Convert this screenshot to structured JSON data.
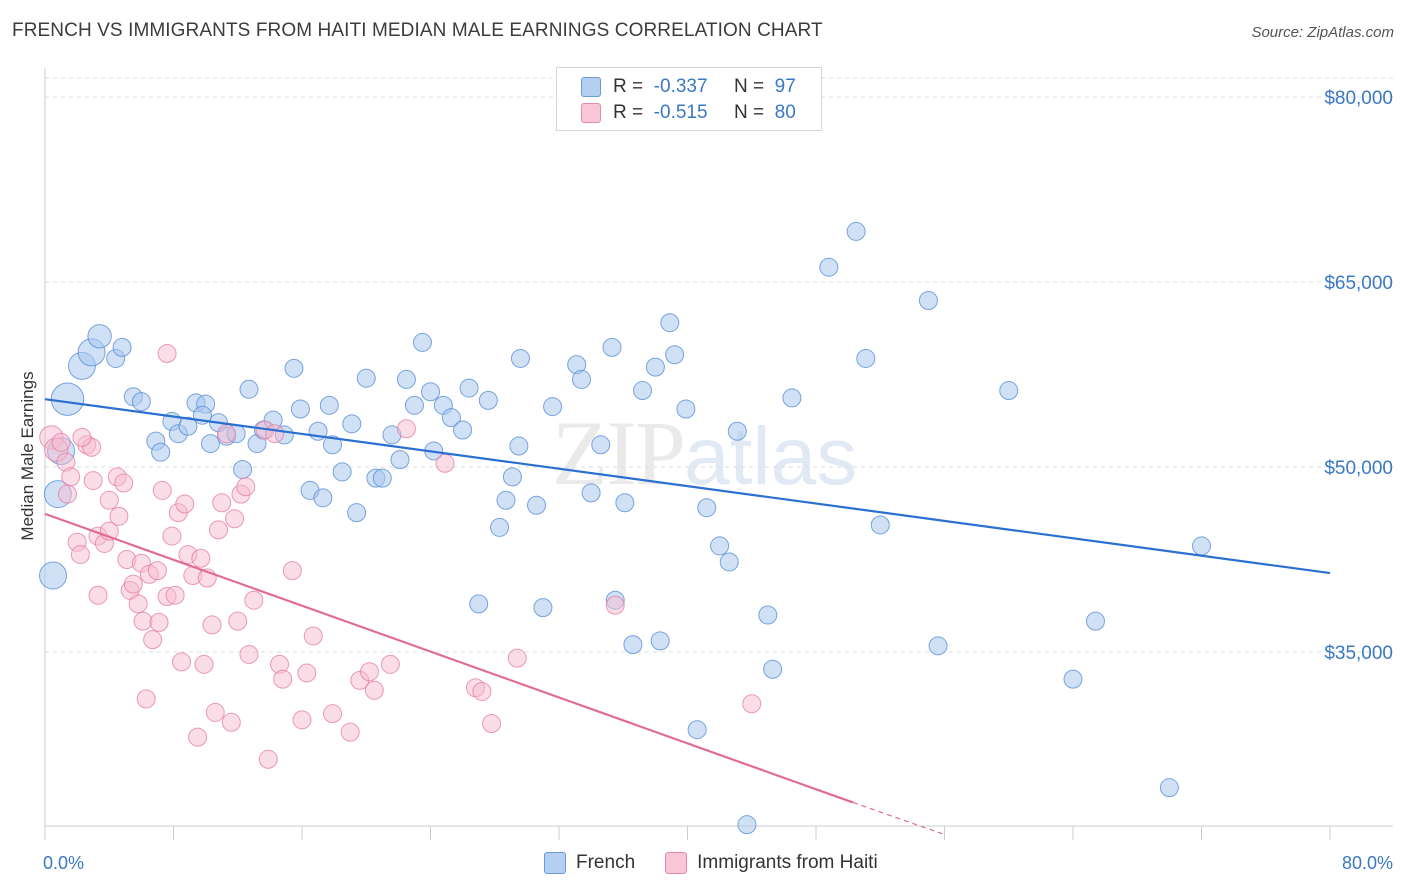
{
  "title": "FRENCH VS IMMIGRANTS FROM HAITI MEDIAN MALE EARNINGS CORRELATION CHART",
  "source": "Source: ZipAtlas.com",
  "watermark": {
    "zip": "ZIP",
    "atlas": "atlas"
  },
  "legend": {
    "rows": [
      {
        "r_label": "R =",
        "r_value": "-0.337",
        "n_label": "N =",
        "n_value": "97"
      },
      {
        "r_label": "R =",
        "r_value": "-0.515",
        "n_label": "N =",
        "n_value": "80"
      }
    ]
  },
  "colors": {
    "french_fill": "#a9c8ee",
    "french_stroke": "#5b8fd4",
    "french_line": "#2a6fd1",
    "haiti_fill": "#f5bcd0",
    "haiti_stroke": "#e47aa0",
    "haiti_line": "#e06b96",
    "grid": "#d8dde3",
    "axis_text": "#3b78c4"
  },
  "chart_data": {
    "type": "scatter",
    "title": "FRENCH VS IMMIGRANTS FROM HAITI MEDIAN MALE EARNINGS CORRELATION CHART",
    "xlabel": "",
    "ylabel": "Median Male Earnings",
    "xlim": [
      0,
      80
    ],
    "ylim": [
      20000,
      82500
    ],
    "x_tick_labels": [
      "0.0%",
      "80.0%"
    ],
    "y_ticks": [
      35000,
      50000,
      65000,
      80000
    ],
    "y_tick_labels": [
      "$35,000",
      "$50,000",
      "$65,000",
      "$80,000"
    ],
    "grid": true,
    "legend_position": "bottom",
    "series": [
      {
        "name": "French",
        "r": -0.337,
        "n": 97,
        "trend": {
          "x": [
            0,
            80
          ],
          "y": [
            55500,
            41400
          ]
        },
        "points": [
          [
            0.5,
            41200,
            1.5
          ],
          [
            0.8,
            47800,
            1.5
          ],
          [
            1.0,
            51300,
            1.5
          ],
          [
            1.4,
            55500,
            1.8
          ],
          [
            2.3,
            58200,
            1.5
          ],
          [
            2.9,
            59300,
            1.5
          ],
          [
            3.4,
            60600,
            1.3
          ],
          [
            4.4,
            58800,
            1.0
          ],
          [
            4.8,
            59700,
            1.0
          ],
          [
            5.5,
            55700,
            1.0
          ],
          [
            6.0,
            55300,
            1.0
          ],
          [
            6.9,
            52100,
            1.0
          ],
          [
            7.2,
            51200,
            1.0
          ],
          [
            7.9,
            53700,
            1.0
          ],
          [
            8.3,
            52700,
            1.0
          ],
          [
            8.9,
            53300,
            1.0
          ],
          [
            9.4,
            55200,
            1.0
          ],
          [
            10.0,
            55100,
            1.0
          ],
          [
            10.3,
            51900,
            1.0
          ],
          [
            10.8,
            53600,
            1.0
          ],
          [
            11.3,
            52500,
            1.0
          ],
          [
            11.9,
            52700,
            1.0
          ],
          [
            12.3,
            49800,
            1.0
          ],
          [
            13.2,
            51900,
            1.0
          ],
          [
            13.6,
            53000,
            1.0
          ],
          [
            14.2,
            53800,
            1.0
          ],
          [
            14.9,
            52600,
            1.0
          ],
          [
            15.5,
            58000,
            1.0
          ],
          [
            15.9,
            54700,
            1.0
          ],
          [
            16.5,
            48100,
            1.0
          ],
          [
            17.0,
            52900,
            1.0
          ],
          [
            17.3,
            47500,
            1.0
          ],
          [
            17.9,
            51800,
            1.0
          ],
          [
            18.5,
            49600,
            1.0
          ],
          [
            19.1,
            53500,
            1.0
          ],
          [
            19.4,
            46300,
            1.0
          ],
          [
            20.0,
            57200,
            1.0
          ],
          [
            20.6,
            49100,
            1.0
          ],
          [
            21.0,
            49100,
            1.0
          ],
          [
            21.6,
            52600,
            1.0
          ],
          [
            22.1,
            50600,
            1.0
          ],
          [
            22.5,
            57100,
            1.0
          ],
          [
            23.0,
            55000,
            1.0
          ],
          [
            23.5,
            60100,
            1.0
          ],
          [
            24.0,
            56100,
            1.0
          ],
          [
            24.8,
            55000,
            1.0
          ],
          [
            25.3,
            54000,
            1.0
          ],
          [
            26.0,
            53000,
            1.0
          ],
          [
            26.4,
            56400,
            1.0
          ],
          [
            27.0,
            38900,
            1.0
          ],
          [
            27.6,
            55400,
            1.0
          ],
          [
            28.3,
            45100,
            1.0
          ],
          [
            28.7,
            47300,
            1.0
          ],
          [
            29.1,
            49200,
            1.0
          ],
          [
            29.6,
            58800,
            1.0
          ],
          [
            30.6,
            46900,
            1.0
          ],
          [
            31.0,
            38600,
            1.0
          ],
          [
            31.6,
            54900,
            1.0
          ],
          [
            33.1,
            58300,
            1.0
          ],
          [
            33.4,
            57100,
            1.0
          ],
          [
            34.0,
            47900,
            1.0
          ],
          [
            34.6,
            51800,
            1.0
          ],
          [
            35.3,
            59700,
            1.0
          ],
          [
            35.5,
            39200,
            1.0
          ],
          [
            36.1,
            47100,
            1.0
          ],
          [
            36.6,
            35600,
            1.0
          ],
          [
            37.2,
            56200,
            1.0
          ],
          [
            38.0,
            58100,
            1.0
          ],
          [
            38.3,
            35900,
            1.0
          ],
          [
            38.9,
            61700,
            1.0
          ],
          [
            39.2,
            59100,
            1.0
          ],
          [
            39.9,
            54700,
            1.0
          ],
          [
            40.6,
            28700,
            1.0
          ],
          [
            41.2,
            46700,
            1.0
          ],
          [
            42.0,
            43600,
            1.0
          ],
          [
            42.6,
            42300,
            1.0
          ],
          [
            43.1,
            52900,
            1.0
          ],
          [
            43.7,
            21000,
            1.0
          ],
          [
            45.0,
            38000,
            1.0
          ],
          [
            45.3,
            33600,
            1.0
          ],
          [
            46.5,
            55600,
            1.0
          ],
          [
            48.8,
            66200,
            1.0
          ],
          [
            50.5,
            69100,
            1.0
          ],
          [
            51.1,
            58800,
            1.0
          ],
          [
            52.0,
            45300,
            1.0
          ],
          [
            55.0,
            63500,
            1.0
          ],
          [
            55.6,
            35500,
            1.0
          ],
          [
            60.0,
            56200,
            1.0
          ],
          [
            64.0,
            32800,
            1.0
          ],
          [
            65.4,
            37500,
            1.0
          ],
          [
            70.0,
            24000,
            1.0
          ],
          [
            72.0,
            43600,
            1.0
          ],
          [
            29.5,
            51700,
            1.0
          ],
          [
            17.7,
            55000,
            1.0
          ],
          [
            24.2,
            51300,
            1.0
          ],
          [
            12.7,
            56300,
            1.0
          ],
          [
            9.8,
            54200,
            1.0
          ]
        ]
      },
      {
        "name": "Immigrants from Haiti",
        "r": -0.515,
        "n": 80,
        "trend": {
          "x": [
            0,
            50.3
          ],
          "y": [
            46200,
            22800
          ]
        },
        "trend_dashed": {
          "x": [
            50.3,
            56
          ],
          "y": [
            22800,
            20200
          ]
        },
        "points": [
          [
            0.4,
            52400,
            1.3
          ],
          [
            0.7,
            51400,
            1.3
          ],
          [
            1.0,
            52000,
            1.0
          ],
          [
            1.3,
            50400,
            1.0
          ],
          [
            1.6,
            49200,
            1.0
          ],
          [
            1.4,
            47800,
            1.0
          ],
          [
            2.0,
            43900,
            1.0
          ],
          [
            2.2,
            42900,
            1.0
          ],
          [
            2.6,
            51800,
            1.0
          ],
          [
            2.9,
            51600,
            1.0
          ],
          [
            3.0,
            48900,
            1.0
          ],
          [
            3.3,
            44400,
            1.0
          ],
          [
            3.3,
            39600,
            1.0
          ],
          [
            3.7,
            43800,
            1.0
          ],
          [
            4.0,
            44800,
            1.0
          ],
          [
            4.0,
            47300,
            1.0
          ],
          [
            4.5,
            49200,
            1.0
          ],
          [
            4.6,
            46000,
            1.0
          ],
          [
            4.9,
            48700,
            1.0
          ],
          [
            5.1,
            42500,
            1.0
          ],
          [
            5.3,
            40000,
            1.0
          ],
          [
            5.5,
            40500,
            1.0
          ],
          [
            5.8,
            38900,
            1.0
          ],
          [
            6.0,
            42200,
            1.0
          ],
          [
            6.1,
            37500,
            1.0
          ],
          [
            6.3,
            31200,
            1.0
          ],
          [
            6.5,
            41300,
            1.0
          ],
          [
            6.7,
            36000,
            1.0
          ],
          [
            7.0,
            41600,
            1.0
          ],
          [
            7.1,
            37400,
            1.0
          ],
          [
            7.3,
            48100,
            1.0
          ],
          [
            7.6,
            39500,
            1.0
          ],
          [
            7.9,
            44400,
            1.0
          ],
          [
            8.1,
            39600,
            1.0
          ],
          [
            8.3,
            46300,
            1.0
          ],
          [
            8.5,
            34200,
            1.0
          ],
          [
            8.7,
            47000,
            1.0
          ],
          [
            8.9,
            42900,
            1.0
          ],
          [
            9.2,
            41200,
            1.0
          ],
          [
            9.5,
            28100,
            1.0
          ],
          [
            9.7,
            42600,
            1.0
          ],
          [
            9.9,
            34000,
            1.0
          ],
          [
            10.1,
            41000,
            1.0
          ],
          [
            10.4,
            37200,
            1.0
          ],
          [
            10.6,
            30100,
            1.0
          ],
          [
            10.8,
            44900,
            1.0
          ],
          [
            11.0,
            47100,
            1.0
          ],
          [
            11.3,
            52700,
            1.0
          ],
          [
            11.6,
            29300,
            1.0
          ],
          [
            11.8,
            45800,
            1.0
          ],
          [
            12.0,
            37500,
            1.0
          ],
          [
            12.2,
            47800,
            1.0
          ],
          [
            12.5,
            48400,
            1.0
          ],
          [
            12.7,
            34800,
            1.0
          ],
          [
            13.0,
            39200,
            1.0
          ],
          [
            13.7,
            53000,
            1.0
          ],
          [
            13.9,
            26300,
            1.0
          ],
          [
            14.3,
            52700,
            1.0
          ],
          [
            14.6,
            34000,
            1.0
          ],
          [
            14.8,
            32800,
            1.0
          ],
          [
            15.4,
            41600,
            1.0
          ],
          [
            16.0,
            29500,
            1.0
          ],
          [
            16.3,
            33300,
            1.0
          ],
          [
            16.7,
            36300,
            1.0
          ],
          [
            17.9,
            30000,
            1.0
          ],
          [
            19.0,
            28500,
            1.0
          ],
          [
            19.6,
            32700,
            1.0
          ],
          [
            20.2,
            33400,
            1.0
          ],
          [
            20.5,
            31900,
            1.0
          ],
          [
            21.5,
            34000,
            1.0
          ],
          [
            22.5,
            53100,
            1.0
          ],
          [
            24.9,
            50300,
            1.0
          ],
          [
            26.8,
            32100,
            1.0
          ],
          [
            27.2,
            31800,
            1.0
          ],
          [
            27.8,
            29200,
            1.0
          ],
          [
            29.4,
            34500,
            1.0
          ],
          [
            35.5,
            38800,
            1.0
          ],
          [
            44.0,
            30800,
            1.0
          ],
          [
            7.6,
            59200,
            1.0
          ],
          [
            2.3,
            52400,
            1.0
          ]
        ]
      }
    ]
  }
}
